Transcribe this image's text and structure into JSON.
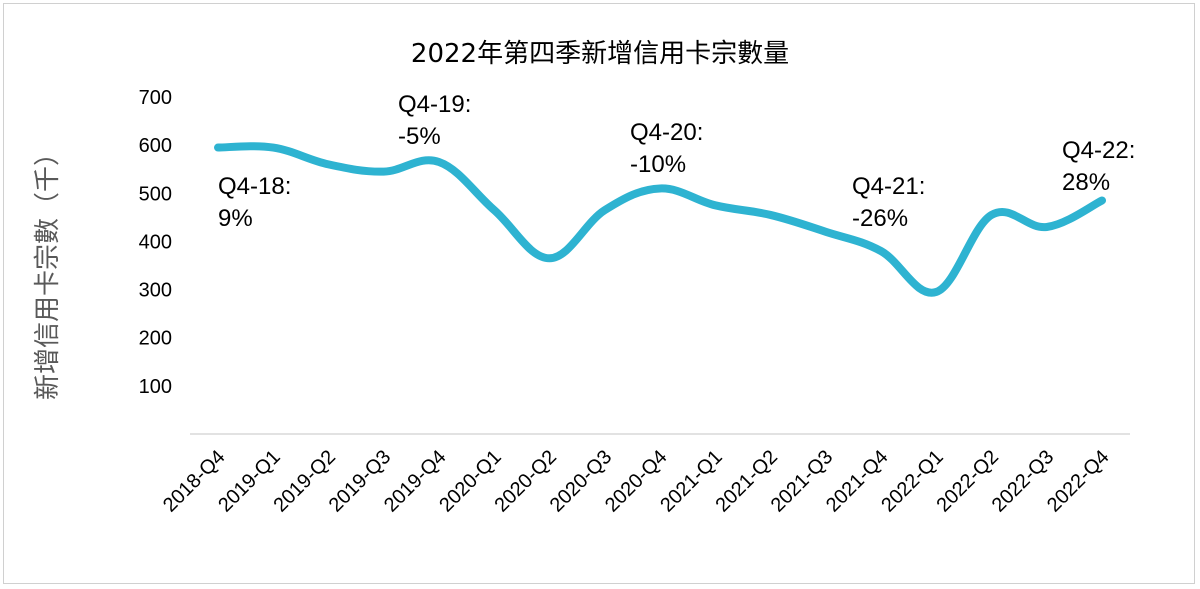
{
  "chart_data": {
    "type": "line",
    "title": "2022年第四季新增信用卡宗數量",
    "xlabel": "",
    "ylabel": "新增信用卡宗數（千）",
    "categories": [
      "2018-Q4",
      "2019-Q1",
      "2019-Q2",
      "2019-Q3",
      "2019-Q4",
      "2020-Q1",
      "2020-Q2",
      "2020-Q3",
      "2020-Q4",
      "2021-Q1",
      "2021-Q2",
      "2021-Q3",
      "2021-Q4",
      "2022-Q1",
      "2022-Q2",
      "2022-Q3",
      "2022-Q4"
    ],
    "series": [
      {
        "values": [
          595,
          595,
          560,
          545,
          565,
          465,
          365,
          465,
          510,
          475,
          455,
          420,
          380,
          295,
          455,
          430,
          485
        ],
        "color": "#2eb3d1"
      }
    ],
    "ylim": [
      0,
      700
    ],
    "yticks": [
      "700",
      "600",
      "500",
      "400",
      "300",
      "200",
      "100"
    ],
    "grid": false,
    "legend": "none",
    "annotations": [
      {
        "category": "2018-Q4",
        "lines": [
          "Q4-18:",
          "9%"
        ]
      },
      {
        "category": "2019-Q4",
        "lines": [
          "Q4-19:",
          "-5%"
        ]
      },
      {
        "category": "2020-Q4",
        "lines": [
          "Q4-20:",
          "-10%"
        ]
      },
      {
        "category": "2021-Q4",
        "lines": [
          "Q4-21:",
          "-26%"
        ]
      },
      {
        "category": "2022-Q4",
        "lines": [
          "Q4-22:",
          "28%"
        ]
      }
    ]
  }
}
